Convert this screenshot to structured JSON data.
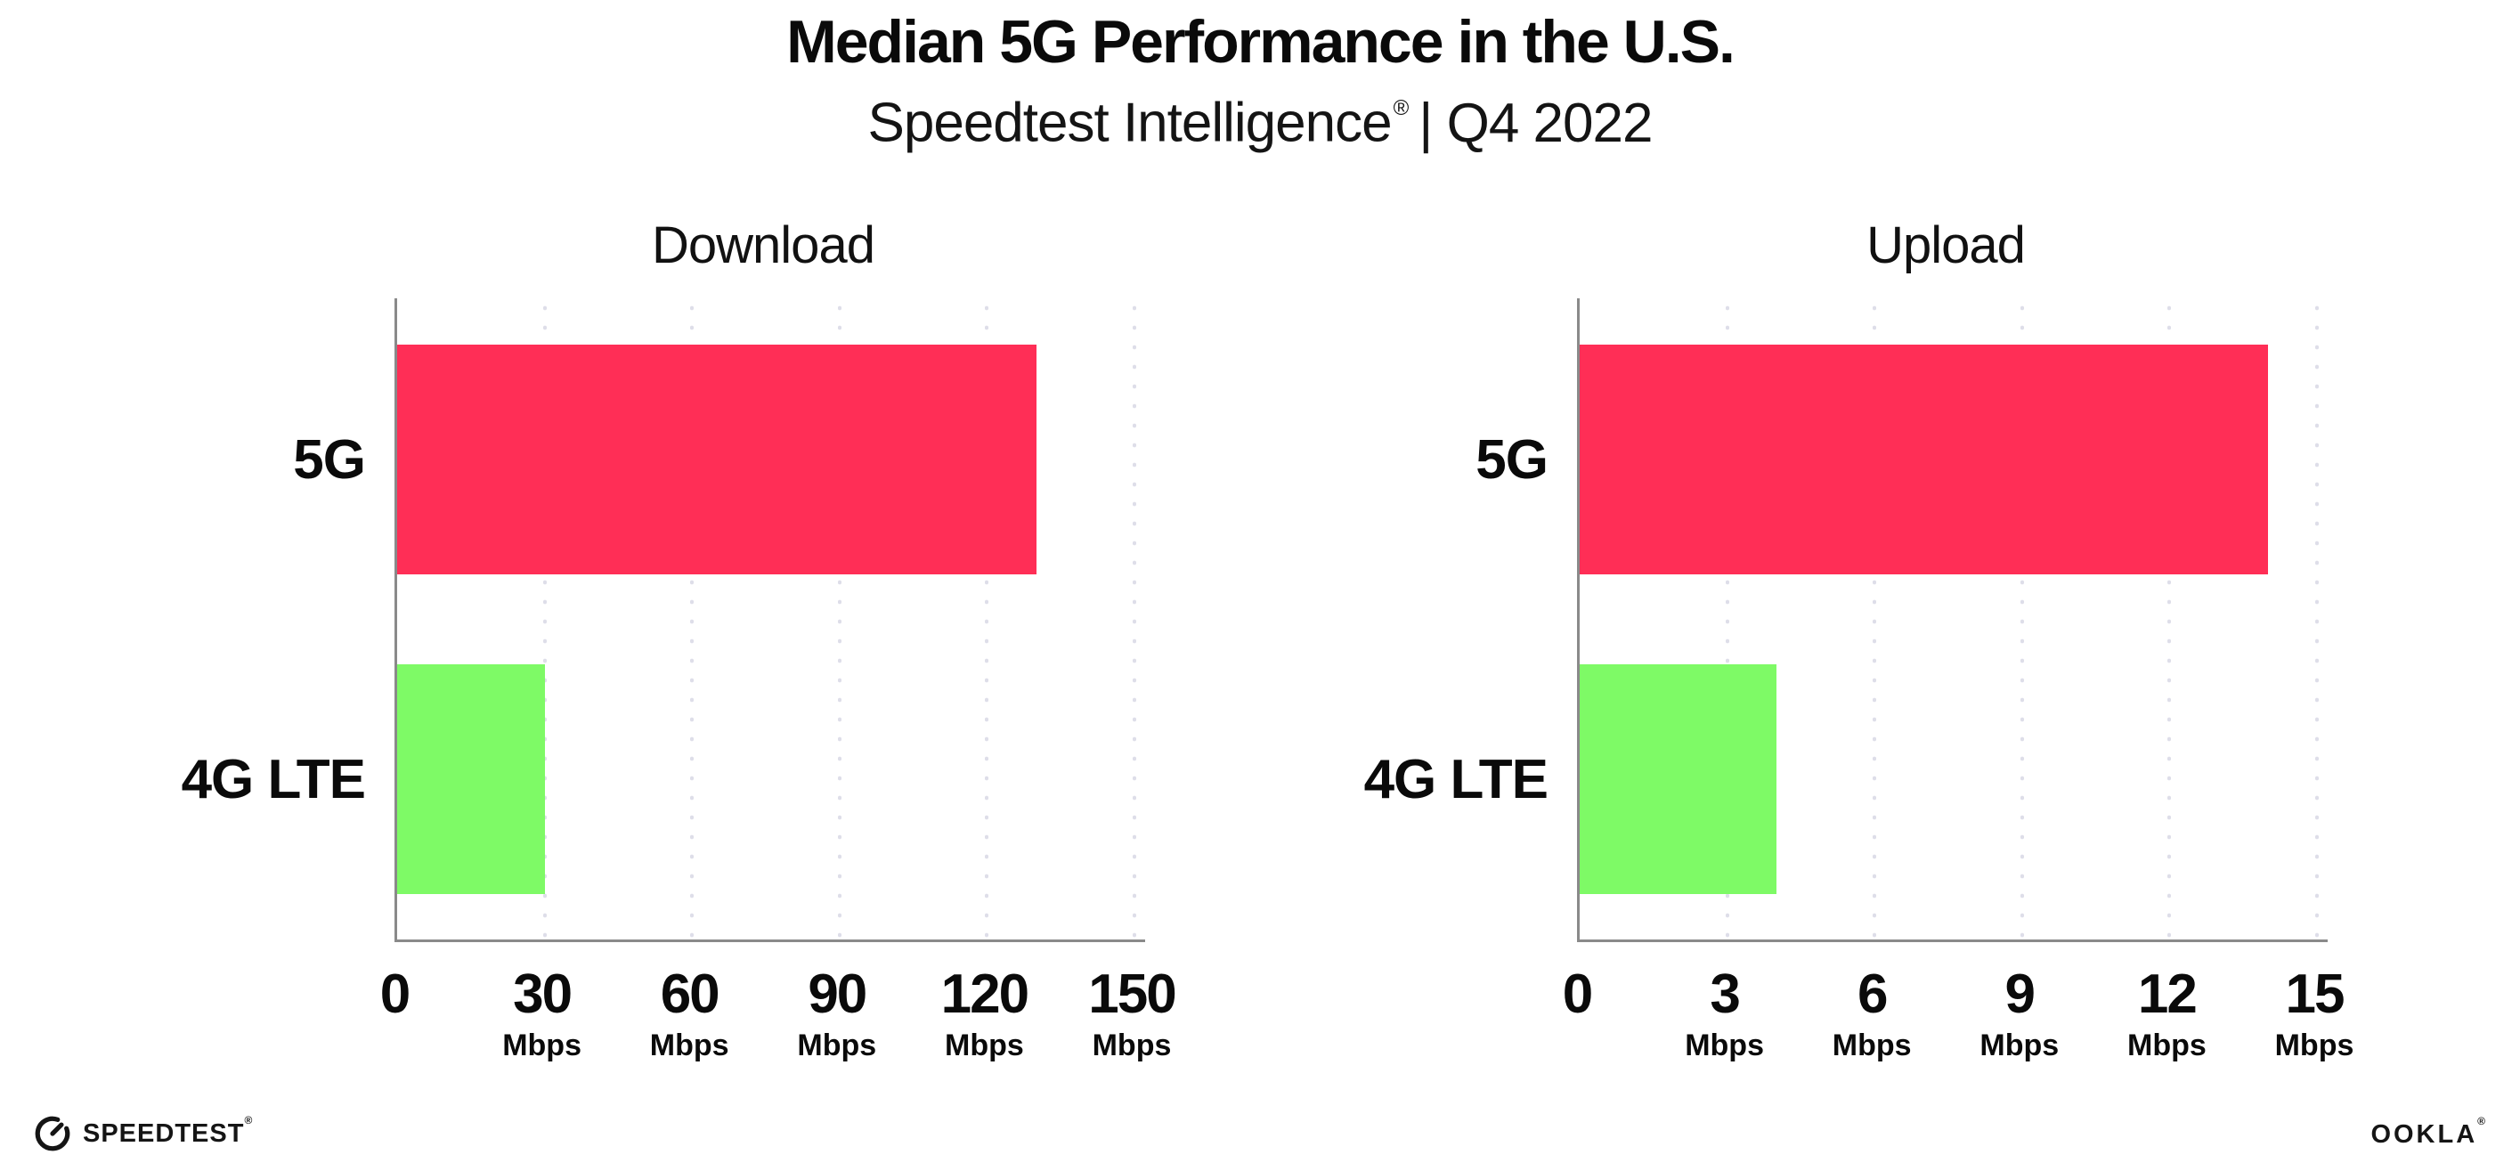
{
  "header": {
    "title": "Median 5G Performance in the U.S.",
    "subtitle_brand": "Speedtest Intelligence",
    "subtitle_reg": "®",
    "subtitle_rest": "| Q4 2022"
  },
  "colors": {
    "bar_5g": "#ff2e56",
    "bar_4g_lte": "#7efa66",
    "gridline": "#dedee9",
    "axis": "#8a8a8a",
    "text": "#0a0a0a"
  },
  "chart_data": [
    {
      "type": "bar",
      "orientation": "horizontal",
      "title": "Download",
      "categories": [
        "5G",
        "4G LTE"
      ],
      "values": [
        130,
        30
      ],
      "unit": "Mbps",
      "xlim": [
        0,
        150
      ],
      "xticks": [
        0,
        30,
        60,
        90,
        120,
        150
      ],
      "tick_unit_label": "Mbps",
      "grid": "dotted-vertical",
      "legend": "none",
      "bar_colors": [
        "#ff2e56",
        "#7efa66"
      ]
    },
    {
      "type": "bar",
      "orientation": "horizontal",
      "title": "Upload",
      "categories": [
        "5G",
        "4G LTE"
      ],
      "values": [
        14,
        4
      ],
      "unit": "Mbps",
      "xlim": [
        0,
        15
      ],
      "xticks": [
        0,
        3,
        6,
        9,
        12,
        15
      ],
      "tick_unit_label": "Mbps",
      "grid": "dotted-vertical",
      "legend": "none",
      "bar_colors": [
        "#ff2e56",
        "#7efa66"
      ]
    }
  ],
  "footer": {
    "speedtest_label": "SPEEDTEST",
    "speedtest_reg": "®",
    "ookla_label": "OOKLA",
    "ookla_reg": "®"
  }
}
